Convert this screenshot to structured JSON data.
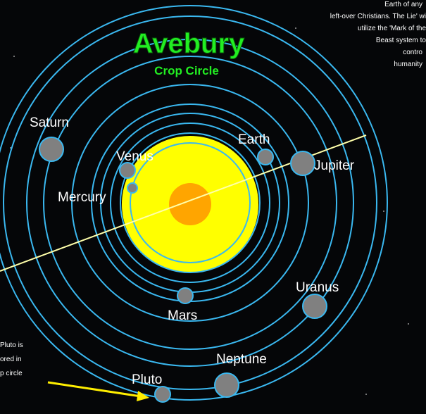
{
  "title": "Avebury",
  "subtitle": "Crop Circle",
  "planets": [
    "Saturn",
    "Venus",
    "Mercury",
    "Earth",
    "Jupiter",
    "Uranus",
    "Mars",
    "Neptune",
    "Pluto"
  ],
  "note_top_right": [
    "Earth of any",
    "left-over Christians. The Lie' wi",
    "utilize the 'Mark of the",
    "Beast system to",
    "contro",
    "humanity"
  ],
  "note_bottom_left": [
    "Pluto is",
    "ored in",
    "p circle"
  ]
}
